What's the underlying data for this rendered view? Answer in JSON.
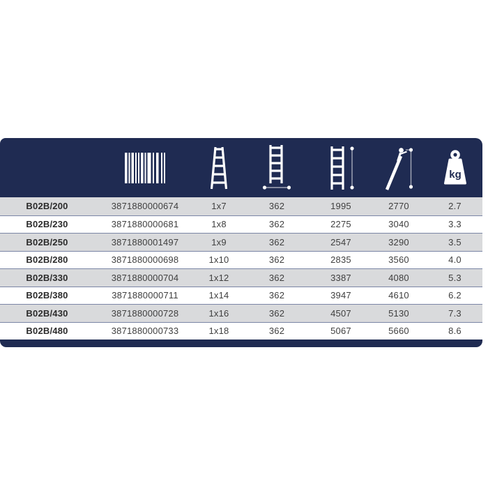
{
  "page": {
    "background": "#ffffff"
  },
  "colors": {
    "header_navy": "#1f2b52",
    "row_gray": "#d9dadc",
    "row_white": "#ffffff",
    "separator": "#7a85a5",
    "text": "#3f3f3f",
    "code_text": "#2b2b2b",
    "icon_white": "#ffffff"
  },
  "header": {
    "columns": [
      {
        "name": "model-code",
        "icon": null
      },
      {
        "name": "ean-barcode",
        "icon": "barcode-icon"
      },
      {
        "name": "rung-configuration",
        "icon": "single-section-ladder-icon"
      },
      {
        "name": "ladder-width",
        "icon": "ladder-width-icon"
      },
      {
        "name": "ladder-length",
        "icon": "ladder-length-icon"
      },
      {
        "name": "working-height",
        "icon": "ladder-working-height-icon"
      },
      {
        "name": "weight",
        "icon": "weight-kg-icon"
      }
    ],
    "weight_unit_label": "kg"
  },
  "table": {
    "rows": [
      [
        "B02B/200",
        "3871880000674",
        "1x7",
        "362",
        "1995",
        "2770",
        "2.7"
      ],
      [
        "B02B/230",
        "3871880000681",
        "1x8",
        "362",
        "2275",
        "3040",
        "3.3"
      ],
      [
        "B02B/250",
        "3871880001497",
        "1x9",
        "362",
        "2547",
        "3290",
        "3.5"
      ],
      [
        "B02B/280",
        "3871880000698",
        "1x10",
        "362",
        "2835",
        "3560",
        "4.0"
      ],
      [
        "B02B/330",
        "3871880000704",
        "1x12",
        "362",
        "3387",
        "4080",
        "5.3"
      ],
      [
        "B02B/380",
        "3871880000711",
        "1x14",
        "362",
        "3947",
        "4610",
        "6.2"
      ],
      [
        "B02B/430",
        "3871880000728",
        "1x16",
        "362",
        "4507",
        "5130",
        "7.3"
      ],
      [
        "B02B/480",
        "3871880000733",
        "1x18",
        "362",
        "5067",
        "5660",
        "8.6"
      ]
    ]
  }
}
